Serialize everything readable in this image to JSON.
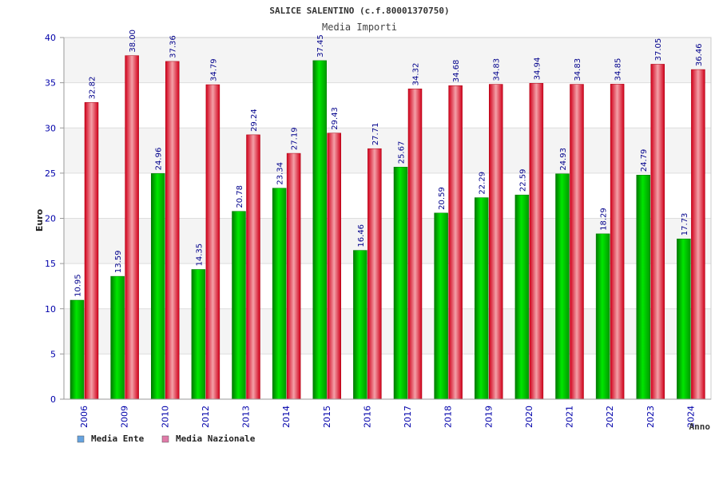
{
  "chart_data": {
    "type": "bar",
    "title": "SALICE SALENTINO (c.f.80001370750)",
    "subtitle": "Media Importi",
    "ylabel": "Euro",
    "xlabel": "Anno",
    "ylim": [
      0,
      40
    ],
    "yticks": [
      "0",
      "5",
      "10",
      "15",
      "20",
      "25",
      "30",
      "35",
      "40"
    ],
    "grid": true,
    "legend_position": "bottom-left",
    "categories": [
      "2006",
      "2009",
      "2010",
      "2012",
      "2013",
      "2014",
      "2015",
      "2016",
      "2017",
      "2018",
      "2019",
      "2020",
      "2021",
      "2022",
      "2023",
      "2024"
    ],
    "series": [
      {
        "name": "Media Ente",
        "color": "#00cc00",
        "legend_color": "#66a3e0",
        "values": [
          10.95,
          13.59,
          24.96,
          14.35,
          20.78,
          23.34,
          37.45,
          16.46,
          25.67,
          20.59,
          22.29,
          22.59,
          24.93,
          18.29,
          24.79,
          17.73
        ],
        "labels": [
          "10.95",
          "13.59",
          "24.96",
          "14.35",
          "20.78",
          "23.34",
          "37.45",
          "16.46",
          "25.67",
          "20.59",
          "22.29",
          "22.59",
          "24.93",
          "18.29",
          "24.79",
          "17.73"
        ]
      },
      {
        "name": "Media Nazionale",
        "color": "#e8101a",
        "legend_color": "#e07aa8",
        "values": [
          32.82,
          38.0,
          37.36,
          34.79,
          29.24,
          27.19,
          29.43,
          27.71,
          34.32,
          34.68,
          34.83,
          34.94,
          34.83,
          34.85,
          37.05,
          36.46
        ],
        "labels": [
          "32.82",
          "38.00",
          "37.36",
          "34.79",
          "29.24",
          "27.19",
          "29.43",
          "27.71",
          "34.32",
          "34.68",
          "34.83",
          "34.94",
          "34.83",
          "34.85",
          "37.05",
          "36.46"
        ]
      }
    ]
  }
}
